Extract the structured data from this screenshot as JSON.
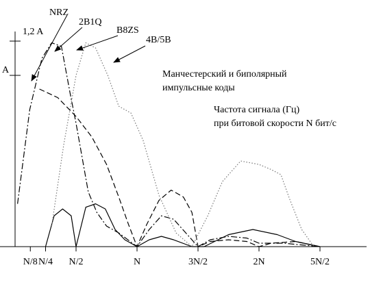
{
  "chart_data": {
    "type": "line",
    "title": "",
    "xlabel": "",
    "ylabel": "",
    "x_domain": [
      0,
      3.2
    ],
    "y_domain": [
      0,
      1.3
    ],
    "x_ticks": [
      {
        "value": 0.125,
        "label": "N/8"
      },
      {
        "value": 0.25,
        "label": "N/4"
      },
      {
        "value": 0.5,
        "label": "N/2"
      },
      {
        "value": 1.0,
        "label": "N"
      },
      {
        "value": 1.5,
        "label": "3N/2"
      },
      {
        "value": 2.0,
        "label": "2N"
      },
      {
        "value": 2.5,
        "label": "5N/2"
      }
    ],
    "y_ticks": [
      {
        "value": 1.0,
        "label": "A"
      },
      {
        "value": 1.2,
        "label": "1,2 A"
      }
    ],
    "annotations": [
      "Манчестерский и биполярный",
      "импульсные коды",
      "Частота сигнала (Гц)",
      "при битовой скорости N бит/с"
    ],
    "series": [
      {
        "name": "NRZ",
        "style": "solid",
        "color": "#000000",
        "points": [
          [
            0.25,
            0.0
          ],
          [
            0.32,
            0.18
          ],
          [
            0.39,
            0.22
          ],
          [
            0.46,
            0.18
          ],
          [
            0.5,
            0.0
          ],
          [
            0.58,
            0.23
          ],
          [
            0.66,
            0.25
          ],
          [
            0.74,
            0.22
          ],
          [
            0.82,
            0.1
          ],
          [
            0.9,
            0.04
          ],
          [
            1.0,
            0.0
          ],
          [
            1.1,
            0.04
          ],
          [
            1.2,
            0.06
          ],
          [
            1.3,
            0.04
          ],
          [
            1.45,
            0.0
          ],
          [
            1.55,
            0.0
          ],
          [
            1.75,
            0.07
          ],
          [
            1.95,
            0.1
          ],
          [
            2.15,
            0.07
          ],
          [
            2.3,
            0.03
          ],
          [
            2.5,
            0.0
          ]
        ]
      },
      {
        "name": "2B1Q",
        "style": "dashed",
        "color": "#000000",
        "points": [
          [
            0.2,
            0.92
          ],
          [
            0.35,
            0.87
          ],
          [
            0.5,
            0.76
          ],
          [
            0.63,
            0.64
          ],
          [
            0.75,
            0.48
          ],
          [
            0.85,
            0.29
          ],
          [
            0.93,
            0.13
          ],
          [
            1.0,
            0.0
          ],
          [
            1.08,
            0.13
          ],
          [
            1.18,
            0.27
          ],
          [
            1.28,
            0.33
          ],
          [
            1.38,
            0.29
          ],
          [
            1.45,
            0.2
          ],
          [
            1.5,
            0.0
          ],
          [
            1.6,
            0.03
          ],
          [
            1.75,
            0.04
          ],
          [
            1.9,
            0.03
          ],
          [
            2.0,
            0.0
          ],
          [
            2.1,
            0.02
          ],
          [
            2.3,
            0.03
          ],
          [
            2.5,
            0.0
          ]
        ]
      },
      {
        "name": "B8ZS",
        "style": "dash-dot",
        "color": "#000000",
        "points": [
          [
            0.02,
            0.25
          ],
          [
            0.12,
            0.8
          ],
          [
            0.22,
            1.1
          ],
          [
            0.3,
            1.19
          ],
          [
            0.38,
            1.17
          ],
          [
            0.45,
            0.9
          ],
          [
            0.5,
            0.72
          ],
          [
            0.55,
            0.52
          ],
          [
            0.6,
            0.32
          ],
          [
            0.67,
            0.2
          ],
          [
            0.75,
            0.12
          ],
          [
            0.85,
            0.08
          ],
          [
            1.0,
            0.0
          ],
          [
            1.1,
            0.1
          ],
          [
            1.2,
            0.18
          ],
          [
            1.3,
            0.16
          ],
          [
            1.45,
            0.04
          ],
          [
            1.5,
            0.0
          ],
          [
            1.6,
            0.04
          ],
          [
            1.75,
            0.06
          ],
          [
            1.9,
            0.05
          ],
          [
            2.0,
            0.02
          ],
          [
            2.2,
            0.02
          ],
          [
            2.5,
            0.0
          ]
        ]
      },
      {
        "name": "4B/5B",
        "style": "dotted",
        "color": "#777777",
        "points": [
          [
            0.3,
            0.12
          ],
          [
            0.4,
            0.6
          ],
          [
            0.5,
            1.0
          ],
          [
            0.58,
            1.19
          ],
          [
            0.66,
            1.16
          ],
          [
            0.76,
            1.0
          ],
          [
            0.85,
            0.82
          ],
          [
            0.95,
            0.78
          ],
          [
            1.05,
            0.62
          ],
          [
            1.18,
            0.3
          ],
          [
            1.32,
            0.08
          ],
          [
            1.45,
            0.0
          ],
          [
            1.58,
            0.18
          ],
          [
            1.7,
            0.38
          ],
          [
            1.85,
            0.5
          ],
          [
            2.0,
            0.48
          ],
          [
            2.1,
            0.45
          ],
          [
            2.18,
            0.42
          ],
          [
            2.25,
            0.28
          ],
          [
            2.35,
            0.1
          ],
          [
            2.45,
            0.0
          ]
        ]
      }
    ]
  }
}
